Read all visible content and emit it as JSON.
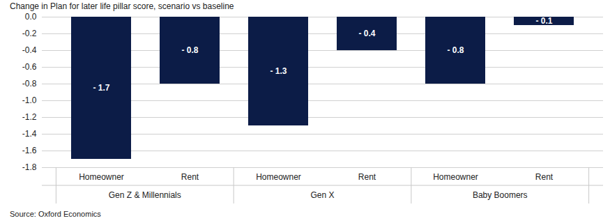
{
  "chart_data": {
    "type": "bar",
    "title": "Change in Plan for later life pillar score, scenario vs baseline",
    "caption": "Source: Oxford Economics",
    "categories": [
      "Homeowner",
      "Rent",
      "Homeowner",
      "Rent",
      "Homeowner",
      "Rent"
    ],
    "category_groups": [
      "Gen Z & Millennials",
      "Gen Z & Millennials",
      "Gen X",
      "Gen X",
      "Baby Boomers",
      "Baby Boomers"
    ],
    "values": [
      -1.7,
      -0.8,
      -1.3,
      -0.4,
      -0.8,
      -0.1
    ],
    "value_labels": [
      "- 1.7",
      "- 0.8",
      "- 1.3",
      "- 0.4",
      "- 0.8",
      "- 0.1"
    ],
    "color": "#0c1c47",
    "ylim": [
      -1.8,
      0
    ],
    "yticks": [
      {
        "value": 0,
        "label": "0.0"
      },
      -0.2,
      -0.4,
      -0.6,
      -0.8,
      {
        "value": -1,
        "label": "-1.0"
      },
      -1.2,
      -1.4,
      -1.6,
      -1.8
    ],
    "grid": true,
    "data_labels": true
  }
}
